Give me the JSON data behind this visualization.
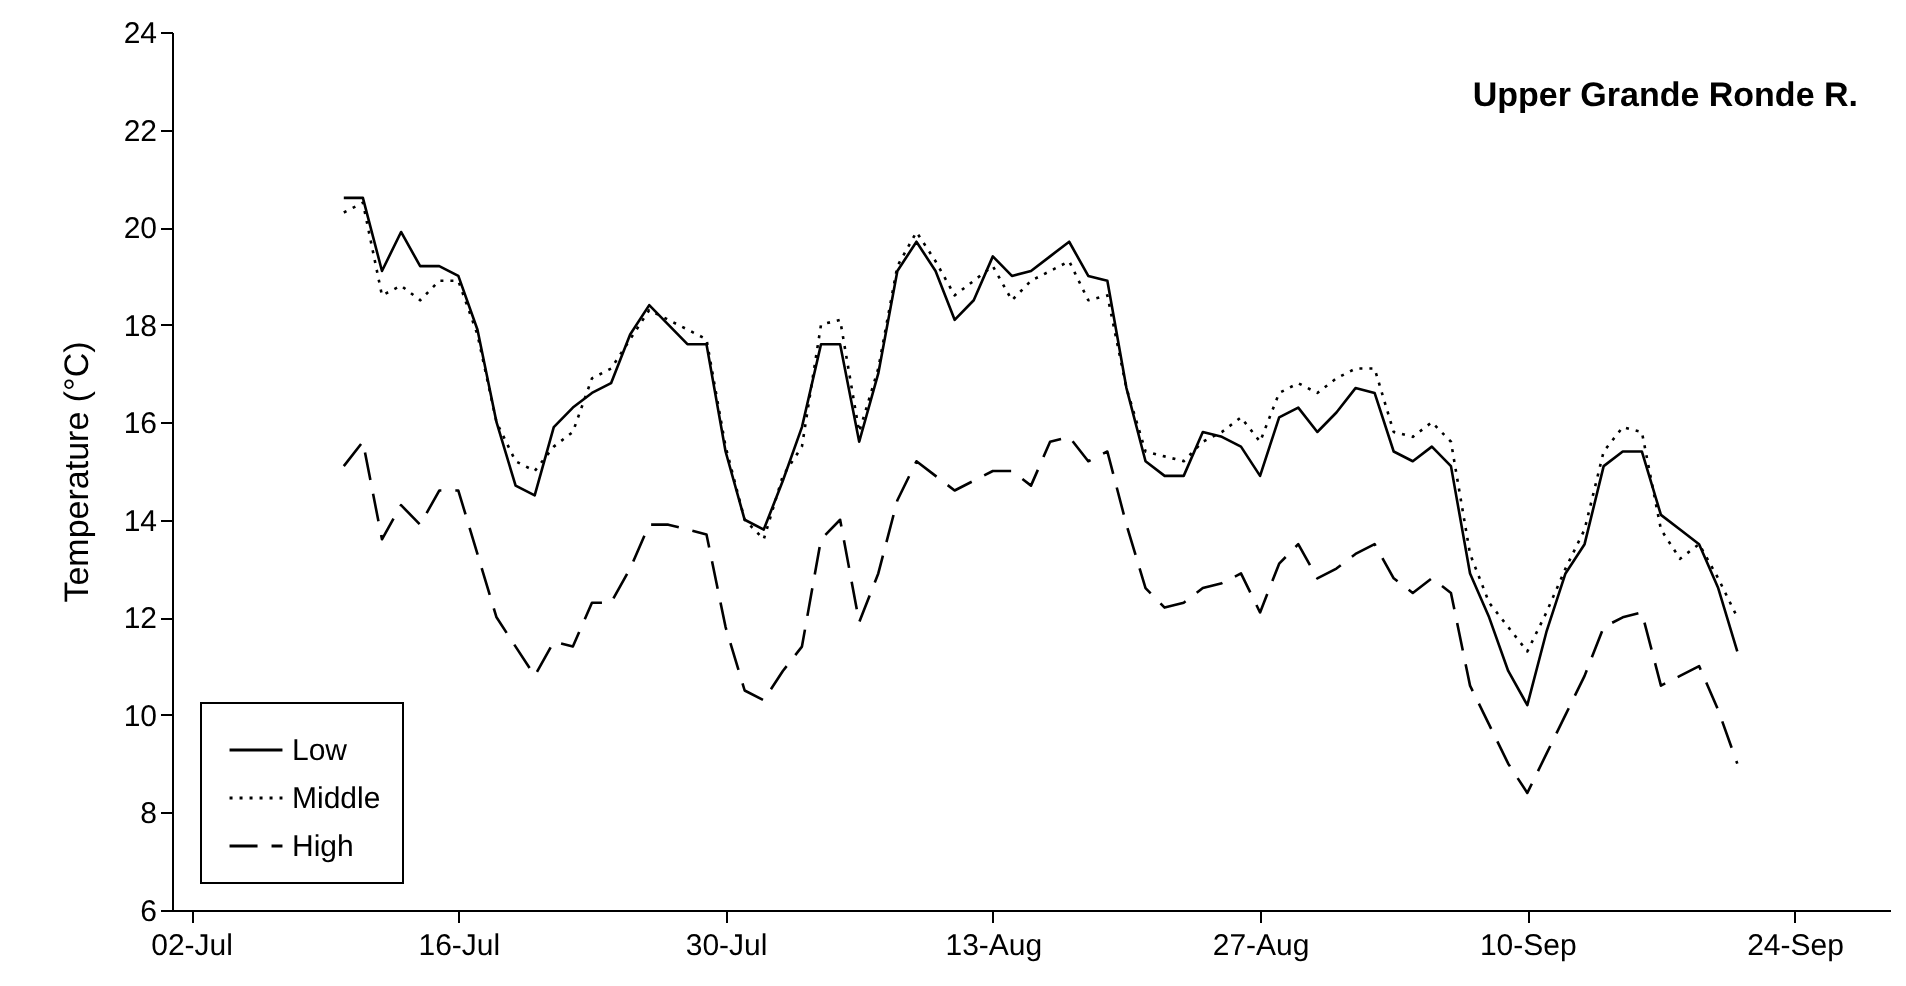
{
  "chart_data": {
    "type": "line",
    "title": "Upper Grande Ronde R.",
    "ylabel": "Temperature (°C)",
    "x": [
      "--07-10",
      "--07-11",
      "--07-12",
      "--07-13",
      "--07-14",
      "--07-15",
      "--07-16",
      "--07-17",
      "--07-18",
      "--07-19",
      "--07-20",
      "--07-21",
      "--07-22",
      "--07-23",
      "--07-24",
      "--07-25",
      "--07-26",
      "--07-27",
      "--07-28",
      "--07-29",
      "--07-30",
      "--07-31",
      "--08-01",
      "--08-02",
      "--08-03",
      "--08-04",
      "--08-05",
      "--08-06",
      "--08-07",
      "--08-08",
      "--08-09",
      "--08-10",
      "--08-11",
      "--08-12",
      "--08-13",
      "--08-14",
      "--08-15",
      "--08-16",
      "--08-17",
      "--08-18",
      "--08-19",
      "--08-20",
      "--08-21",
      "--08-22",
      "--08-23",
      "--08-24",
      "--08-25",
      "--08-26",
      "--08-27",
      "--08-28",
      "--08-29",
      "--08-30",
      "--08-31",
      "--09-01",
      "--09-02",
      "--09-03",
      "--09-04",
      "--09-05",
      "--09-06",
      "--09-07",
      "--09-08",
      "--09-09",
      "--09-10",
      "--09-11",
      "--09-12",
      "--09-13",
      "--09-14",
      "--09-15",
      "--09-16",
      "--09-17",
      "--09-18",
      "--09-19",
      "--09-20",
      "--09-21"
    ],
    "series": [
      {
        "name": "Low",
        "color": "#000000",
        "line_style": "solid",
        "values": [
          20.6,
          20.6,
          19.1,
          19.9,
          19.2,
          19.2,
          19.0,
          17.9,
          16.0,
          14.7,
          14.5,
          15.9,
          16.3,
          16.6,
          16.8,
          17.8,
          18.4,
          18.0,
          17.6,
          17.6,
          15.4,
          14.0,
          13.8,
          14.8,
          15.9,
          17.6,
          17.6,
          15.6,
          17.0,
          19.1,
          19.7,
          19.1,
          18.1,
          18.5,
          19.4,
          19.0,
          19.1,
          19.4,
          19.7,
          19.0,
          18.9,
          16.7,
          15.2,
          14.9,
          14.9,
          15.8,
          15.7,
          15.5,
          14.9,
          16.1,
          16.3,
          15.8,
          16.2,
          16.7,
          16.6,
          15.4,
          15.2,
          15.5,
          15.1,
          12.9,
          12.0,
          10.9,
          10.2,
          11.7,
          12.9,
          13.5,
          15.1,
          15.4,
          15.4,
          14.1,
          13.8,
          13.5,
          12.6,
          11.3
        ]
      },
      {
        "name": "Middle",
        "color": "#000000",
        "line_style": "dotted",
        "values": [
          20.3,
          20.5,
          18.6,
          18.8,
          18.5,
          18.9,
          18.9,
          17.8,
          16.0,
          15.2,
          15.0,
          15.5,
          15.8,
          16.9,
          17.1,
          17.7,
          18.3,
          18.1,
          17.9,
          17.7,
          15.5,
          14.0,
          13.6,
          14.9,
          15.5,
          18.0,
          18.1,
          15.8,
          17.1,
          19.2,
          19.9,
          19.3,
          18.6,
          18.9,
          19.2,
          18.5,
          18.9,
          19.1,
          19.3,
          18.5,
          18.6,
          16.7,
          15.4,
          15.3,
          15.2,
          15.6,
          15.8,
          16.1,
          15.6,
          16.6,
          16.8,
          16.6,
          16.9,
          17.1,
          17.1,
          15.8,
          15.7,
          16.0,
          15.6,
          13.3,
          12.3,
          11.8,
          11.3,
          12.1,
          13.0,
          13.8,
          15.4,
          15.9,
          15.8,
          13.8,
          13.2,
          13.5,
          12.8,
          12.0
        ]
      },
      {
        "name": "High",
        "color": "#000000",
        "line_style": "dashed",
        "values": [
          15.1,
          15.6,
          13.6,
          14.3,
          13.9,
          14.6,
          14.6,
          13.3,
          12.0,
          11.4,
          10.8,
          11.5,
          11.4,
          12.3,
          12.3,
          13.0,
          13.9,
          13.9,
          13.8,
          13.7,
          11.8,
          10.5,
          10.3,
          10.9,
          11.4,
          13.6,
          14.0,
          11.9,
          12.9,
          14.4,
          15.2,
          14.9,
          14.6,
          14.8,
          15.0,
          15.0,
          14.7,
          15.6,
          15.7,
          15.2,
          15.4,
          13.9,
          12.6,
          12.2,
          12.3,
          12.6,
          12.7,
          12.9,
          12.1,
          13.1,
          13.5,
          12.8,
          13.0,
          13.3,
          13.5,
          12.8,
          12.5,
          12.8,
          12.5,
          10.6,
          9.8,
          9.0,
          8.4,
          9.2,
          10.0,
          10.8,
          11.8,
          12.0,
          12.1,
          10.6,
          10.8,
          11.0,
          10.1,
          9.0
        ]
      }
    ],
    "xlim": [
      "--07-01",
      "--09-29"
    ],
    "xticks": [
      {
        "value": "--07-02",
        "label": "02-Jul"
      },
      {
        "value": "--07-16",
        "label": "16-Jul"
      },
      {
        "value": "--07-30",
        "label": "30-Jul"
      },
      {
        "value": "--08-13",
        "label": "13-Aug"
      },
      {
        "value": "--08-27",
        "label": "27-Aug"
      },
      {
        "value": "--09-10",
        "label": "10-Sep"
      },
      {
        "value": "--09-24",
        "label": "24-Sep"
      }
    ],
    "ylim": [
      6,
      24
    ],
    "yticks": [
      6,
      8,
      10,
      12,
      14,
      16,
      18,
      20,
      22,
      24
    ],
    "grid": false,
    "legend": "bottom left",
    "marker": "none"
  }
}
